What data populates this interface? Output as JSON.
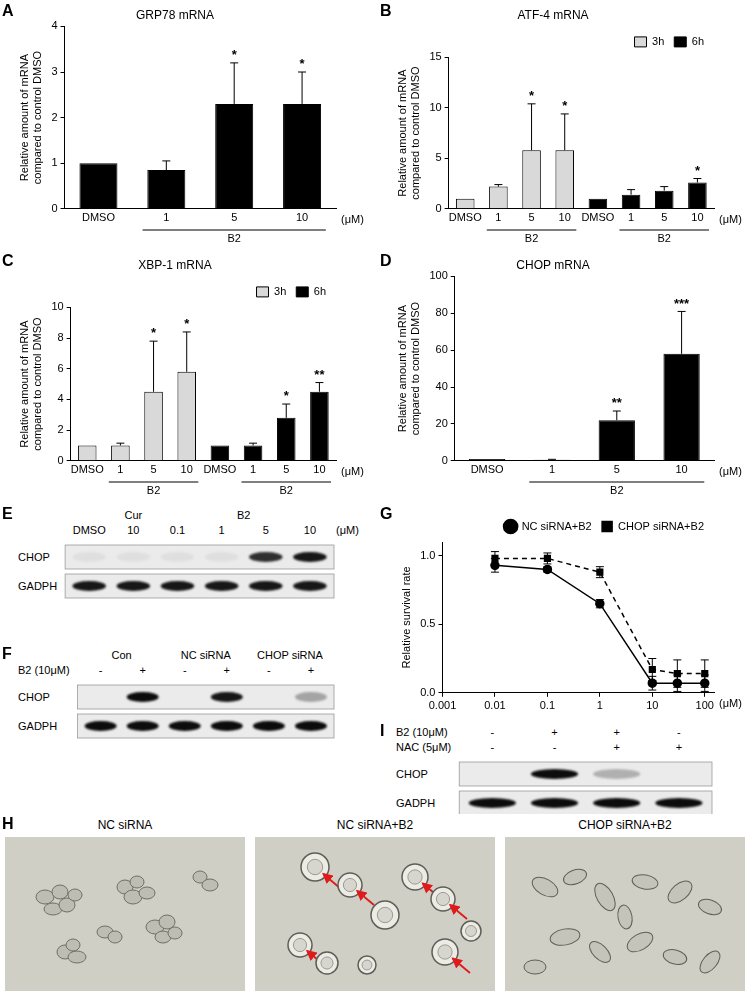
{
  "chart_data": [
    {
      "panel": "A",
      "type": "bar",
      "title": "GRP78 mRNA",
      "y_label": [
        "Relative amount of mRNA",
        "compared to control DMSO"
      ],
      "categories": [
        "DMSO",
        "1",
        "5",
        "10"
      ],
      "values": [
        1,
        0.85,
        2.3,
        2.3
      ],
      "errors": [
        0,
        0.2,
        0.9,
        0.7
      ],
      "significance": [
        null,
        null,
        "*",
        "*"
      ],
      "color": "#000000",
      "groups": [
        {
          "label": "B2",
          "start": 1,
          "end": 3
        }
      ],
      "unit": "(μM)",
      "ylim": [
        0,
        4
      ],
      "yticks": [
        0,
        1,
        2,
        3,
        4
      ],
      "grid": false
    },
    {
      "panel": "B",
      "type": "bar",
      "title": "ATF-4 mRNA",
      "y_label": [
        "Relative amount of mRNA",
        "compared to control DMSO"
      ],
      "categories": [
        "DMSO",
        "1",
        "5",
        "10",
        "DMSO",
        "1",
        "5",
        "10"
      ],
      "series": [
        {
          "name": "3h",
          "color": "#d9d9d9",
          "values": [
            1,
            2.2,
            5.8,
            5.8,
            null,
            null,
            null,
            null
          ],
          "errors": [
            0,
            0.2,
            4.6,
            3.6,
            null,
            null,
            null,
            null
          ],
          "significance": [
            null,
            null,
            "*",
            "*",
            null,
            null,
            null,
            null
          ]
        },
        {
          "name": "6h",
          "color": "#000000",
          "values": [
            null,
            null,
            null,
            null,
            1,
            1.4,
            1.8,
            2.6
          ],
          "errors": [
            null,
            null,
            null,
            null,
            0,
            0.5,
            0.4,
            0.4
          ],
          "significance": [
            null,
            null,
            null,
            null,
            null,
            null,
            null,
            "*"
          ]
        }
      ],
      "groups": [
        {
          "label": "B2",
          "start": 1,
          "end": 3
        },
        {
          "label": "B2",
          "start": 5,
          "end": 7
        }
      ],
      "unit": "(μM)",
      "legend": "upper right",
      "ylim": [
        0,
        15
      ],
      "yticks": [
        0,
        5,
        10,
        15
      ],
      "grid": false
    },
    {
      "panel": "C",
      "type": "bar",
      "title": "XBP-1 mRNA",
      "y_label": [
        "Relative amount of mRNA",
        "compared to control DMSO"
      ],
      "categories": [
        "DMSO",
        "1",
        "5",
        "10",
        "DMSO",
        "1",
        "5",
        "10"
      ],
      "series": [
        {
          "name": "3h",
          "color": "#d9d9d9",
          "values": [
            1,
            1,
            4.5,
            5.8,
            null,
            null,
            null,
            null
          ],
          "errors": [
            0,
            0.15,
            3.3,
            2.6,
            null,
            null,
            null,
            null
          ],
          "significance": [
            null,
            null,
            "*",
            "*",
            null,
            null,
            null,
            null
          ]
        },
        {
          "name": "6h",
          "color": "#000000",
          "values": [
            null,
            null,
            null,
            null,
            1,
            1,
            2.8,
            4.5
          ],
          "errors": [
            null,
            null,
            null,
            null,
            0,
            0.15,
            0.9,
            0.6
          ],
          "significance": [
            null,
            null,
            null,
            null,
            null,
            null,
            "*",
            "**"
          ]
        }
      ],
      "groups": [
        {
          "label": "B2",
          "start": 1,
          "end": 3
        },
        {
          "label": "B2",
          "start": 5,
          "end": 7
        }
      ],
      "unit": "(μM)",
      "legend": "upper right",
      "ylim": [
        0,
        10
      ],
      "yticks": [
        0,
        2,
        4,
        6,
        8,
        10
      ],
      "grid": false
    },
    {
      "panel": "D",
      "type": "bar",
      "title": "CHOP mRNA",
      "y_label": [
        "Relative amount of mRNA",
        "compared to control DMSO"
      ],
      "categories": [
        "DMSO",
        "1",
        "5",
        "10"
      ],
      "values": [
        1,
        0.6,
        22,
        58
      ],
      "errors": [
        0,
        0.2,
        5,
        23
      ],
      "significance": [
        null,
        null,
        "**",
        "***"
      ],
      "color": "#000000",
      "groups": [
        {
          "label": "B2",
          "start": 1,
          "end": 3
        }
      ],
      "unit": "(μM)",
      "ylim": [
        0,
        100
      ],
      "yticks": [
        0,
        20,
        40,
        60,
        80,
        100
      ],
      "grid": false
    },
    {
      "panel": "G",
      "type": "line",
      "y_label": "Relative survival rate",
      "log": "x",
      "x": [
        0.01,
        0.1,
        1,
        10,
        30,
        100
      ],
      "series": [
        {
          "name": "NC siRNA+B2",
          "color": "#000000",
          "marker": "circle",
          "line_style": "solid",
          "values": [
            0.93,
            0.9,
            0.65,
            0.07,
            0.07,
            0.07
          ],
          "errors": [
            0.05,
            0.02,
            0.03,
            0.05,
            0.06,
            0.06
          ]
        },
        {
          "name": "CHOP siRNA+B2",
          "color": "#000000",
          "marker": "square",
          "line_style": "dashed",
          "values": [
            0.98,
            0.98,
            0.88,
            0.17,
            0.14,
            0.14
          ],
          "errors": [
            0.05,
            0.04,
            0.04,
            0.08,
            0.1,
            0.1
          ]
        }
      ],
      "unit": "(μM)",
      "legend": "upper right",
      "xlim": [
        0.001,
        150
      ],
      "xticks": [
        0.001,
        0.01,
        0.1,
        1,
        10,
        100
      ],
      "ylim": [
        0,
        1.1
      ],
      "yticks": [
        {
          "value": 0,
          "label": "0.0"
        },
        {
          "value": 0.5,
          "label": "0.5"
        },
        {
          "value": 1,
          "label": "1.0"
        }
      ],
      "grid": false
    }
  ],
  "blots": [
    {
      "panel": "E",
      "header_rows": [
        {
          "label": null,
          "cells": [
            {
              "text": null,
              "span": 1
            },
            {
              "text": "Cur",
              "span": 1
            },
            {
              "text": "B2",
              "span": 4
            }
          ]
        },
        {
          "label": null,
          "cells": [
            {
              "text": "DMSO",
              "span": 1
            },
            {
              "text": "10",
              "span": 1
            },
            {
              "text": "0.1",
              "span": 1
            },
            {
              "text": "1",
              "span": 1
            },
            {
              "text": "5",
              "span": 1
            },
            {
              "text": "10",
              "span": 1
            }
          ]
        }
      ],
      "unit": "(μM)",
      "rows": [
        {
          "label": "CHOP",
          "bands": [
            0.05,
            0.05,
            0.05,
            0.05,
            0.8,
            0.9
          ]
        },
        {
          "label": "GADPH",
          "bands": [
            0.9,
            0.9,
            0.9,
            0.9,
            0.9,
            0.9
          ]
        }
      ]
    },
    {
      "panel": "F",
      "header_rows": [
        {
          "label": null,
          "cells": [
            {
              "text": "Con",
              "span": 2
            },
            {
              "text": "NC siRNA",
              "span": 2
            },
            {
              "text": "CHOP siRNA",
              "span": 2
            }
          ]
        },
        {
          "label": "B2 (10μM)",
          "cells": [
            {
              "text": "-",
              "span": 1
            },
            {
              "text": "+",
              "span": 1
            },
            {
              "text": "-",
              "span": 1
            },
            {
              "text": "+",
              "span": 1
            },
            {
              "text": "-",
              "span": 1
            },
            {
              "text": "+",
              "span": 1
            }
          ]
        }
      ],
      "rows": [
        {
          "label": "CHOP",
          "bands": [
            0,
            0.95,
            0,
            0.9,
            0,
            0.3
          ]
        },
        {
          "label": "GADPH",
          "bands": [
            0.95,
            0.95,
            0.95,
            0.95,
            0.95,
            0.95
          ]
        }
      ]
    },
    {
      "panel": "I",
      "header_rows": [
        {
          "label": "B2 (10μM)",
          "cells": [
            {
              "text": "-",
              "span": 1
            },
            {
              "text": "+",
              "span": 1
            },
            {
              "text": "+",
              "span": 1
            },
            {
              "text": "-",
              "span": 1
            }
          ]
        },
        {
          "label": "NAC (5μM)",
          "cells": [
            {
              "text": "-",
              "span": 1
            },
            {
              "text": "-",
              "span": 1
            },
            {
              "text": "+",
              "span": 1
            },
            {
              "text": "+",
              "span": 1
            }
          ]
        }
      ],
      "rows": [
        {
          "label": "CHOP",
          "bands": [
            0,
            0.95,
            0.25,
            0
          ]
        },
        {
          "label": "GADPH",
          "bands": [
            0.95,
            0.95,
            0.95,
            0.95
          ]
        }
      ]
    }
  ],
  "images": {
    "panel": "H",
    "captions": [
      "NC siRNA",
      "NC siRNA+B2",
      "CHOP siRNA+B2"
    ]
  }
}
